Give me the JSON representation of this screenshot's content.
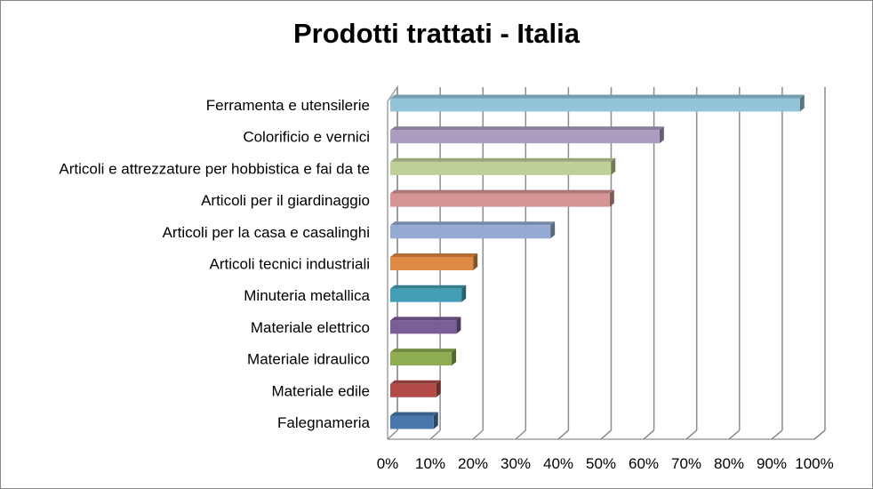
{
  "chart_data": {
    "type": "bar",
    "orientation": "horizontal",
    "style": "3d",
    "title": "Prodotti trattati - Italia",
    "xlabel": "",
    "ylabel": "",
    "xlim": [
      0,
      100
    ],
    "x_ticks": [
      "0%",
      "10%",
      "20%",
      "30%",
      "40%",
      "50%",
      "60%",
      "70%",
      "80%",
      "90%",
      "100%"
    ],
    "grid": true,
    "legend": "none",
    "categories": [
      "Ferramenta e utensilerie",
      "Colorificio e vernici",
      "Articoli e attrezzature per hobbistica e fai da te",
      "Articoli per il giardinaggio",
      "Articoli per la casa e casalinghi",
      "Articoli tecnici industriali",
      "Minuteria metallica",
      "Materiale elettrico",
      "Materiale idraulico",
      "Materiale edile",
      "Falegnameria"
    ],
    "values": [
      95.4,
      62.7,
      51.4,
      51.1,
      37.3,
      19.3,
      16.6,
      15.4,
      14.3,
      10.7,
      10.1
    ],
    "colors": [
      "#93c4d7",
      "#ac9dc0",
      "#bed098",
      "#d69595",
      "#95abd3",
      "#de8a44",
      "#439fb5",
      "#7b5e98",
      "#8fad51",
      "#b24b47",
      "#4a78ad"
    ]
  }
}
